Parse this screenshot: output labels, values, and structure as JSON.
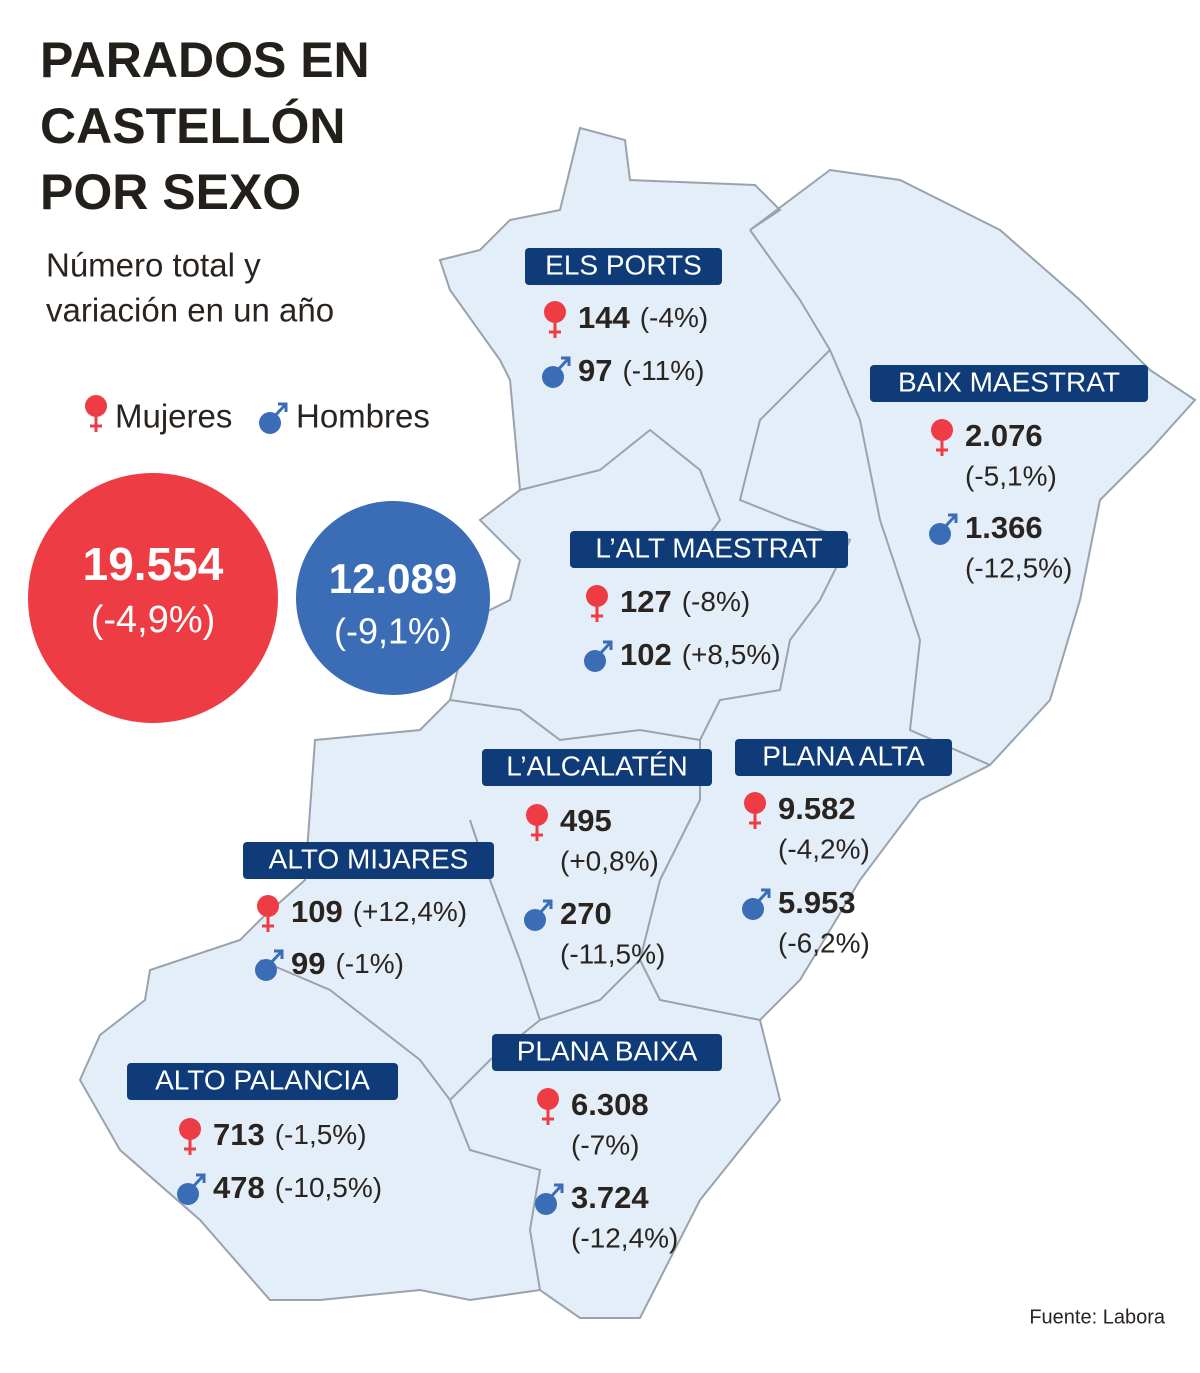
{
  "title": [
    "PARADOS EN",
    "CASTELLÓN",
    "POR SEXO"
  ],
  "subtitle": [
    "Número total y",
    "variación en un año"
  ],
  "legend": {
    "women": "Mujeres",
    "men": "Hombres"
  },
  "totals": {
    "women": {
      "value": "19.554",
      "change": "(-4,9%)"
    },
    "men": {
      "value": "12.089",
      "change": "(-9,1%)"
    }
  },
  "regions": [
    {
      "name": "ELS PORTS",
      "women": {
        "value": "144",
        "change": "(-4%)"
      },
      "men": {
        "value": "97",
        "change": "(-11%)"
      }
    },
    {
      "name": "BAIX MAESTRAT",
      "women": {
        "value": "2.076",
        "change": "(-5,1%)"
      },
      "men": {
        "value": "1.366",
        "change": "(-12,5%)"
      }
    },
    {
      "name": "L’ALT MAESTRAT",
      "women": {
        "value": "127",
        "change": "(-8%)"
      },
      "men": {
        "value": "102",
        "change": "(+8,5%)"
      }
    },
    {
      "name": "L’ALCALATÉN",
      "women": {
        "value": "495",
        "change": "(+0,8%)"
      },
      "men": {
        "value": "270",
        "change": "(-11,5%)"
      }
    },
    {
      "name": "PLANA ALTA",
      "women": {
        "value": "9.582",
        "change": "(-4,2%)"
      },
      "men": {
        "value": "5.953",
        "change": "(-6,2%)"
      }
    },
    {
      "name": "ALTO MIJARES",
      "women": {
        "value": "109",
        "change": "(+12,4%)"
      },
      "men": {
        "value": "99",
        "change": "(-1%)"
      }
    },
    {
      "name": "PLANA BAIXA",
      "women": {
        "value": "6.308",
        "change": "(-7%)"
      },
      "men": {
        "value": "3.724",
        "change": "(-12,4%)"
      }
    },
    {
      "name": "ALTO PALANCIA",
      "women": {
        "value": "713",
        "change": "(-1,5%)"
      },
      "men": {
        "value": "478",
        "change": "(-10,5%)"
      }
    }
  ],
  "source": "Fuente: Labora"
}
